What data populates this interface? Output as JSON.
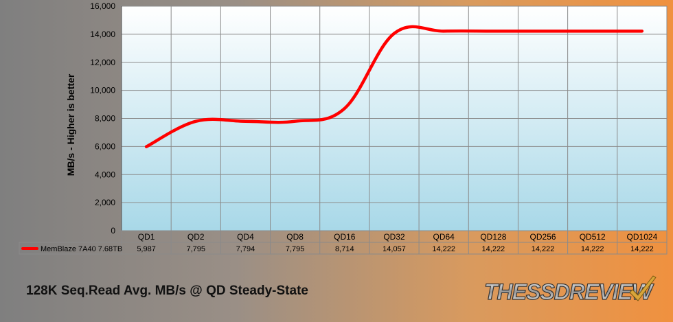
{
  "chart_data": {
    "type": "line",
    "categories": [
      "QD1",
      "QD2",
      "QD4",
      "QD8",
      "QD16",
      "QD32",
      "QD64",
      "QD128",
      "QD256",
      "QD512",
      "QD1024"
    ],
    "series": [
      {
        "name": "MemBlaze 7A40 7.68TB",
        "values": [
          5987,
          7795,
          7794,
          7795,
          8714,
          14057,
          14222,
          14222,
          14222,
          14222,
          14222
        ]
      }
    ],
    "value_labels": [
      "5,987",
      "7,795",
      "7,794",
      "7,795",
      "8,714",
      "14,057",
      "14,222",
      "14,222",
      "14,222",
      "14,222",
      "14,222"
    ],
    "ylabel": "MB/s - Higher is better",
    "ylim": [
      0,
      16000
    ],
    "yticks": [
      "0",
      "2,000",
      "4,000",
      "6,000",
      "8,000",
      "10,000",
      "12,000",
      "14,000",
      "16,000"
    ],
    "grid": true,
    "legend": "data-table-left",
    "series_color": "#ff0000"
  },
  "caption": "128K Seq.Read Avg. MB/s @ QD Steady-State",
  "logo": {
    "text": "THESSDREVIEW",
    "icon": "checkmark-icon"
  }
}
